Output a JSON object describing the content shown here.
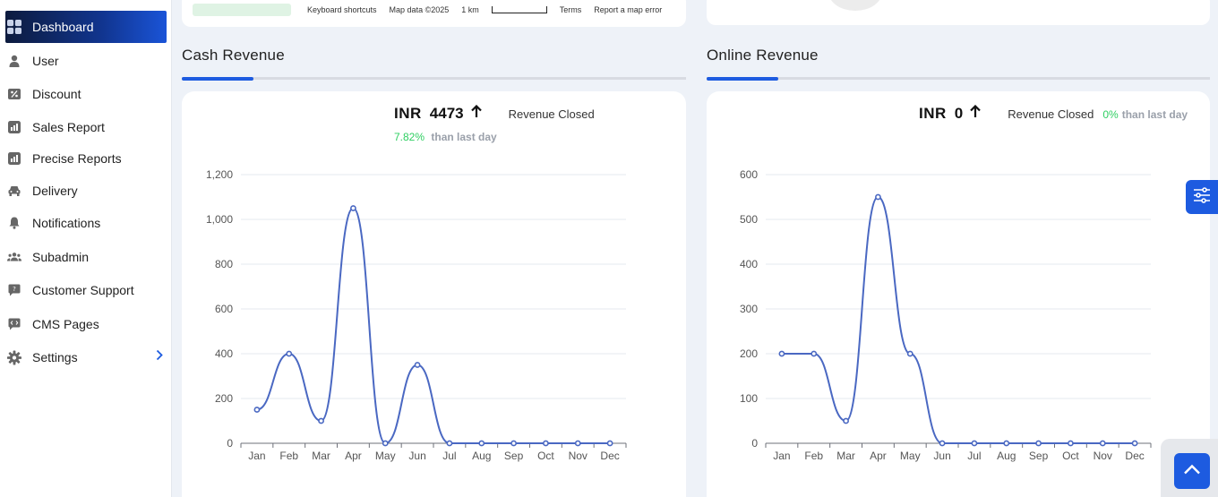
{
  "sidebar": {
    "items": [
      {
        "label": "Dashboard",
        "icon": "grid-icon",
        "active": true
      },
      {
        "label": "User",
        "icon": "user-icon"
      },
      {
        "label": "Discount",
        "icon": "discount-icon"
      },
      {
        "label": "Sales Report",
        "icon": "report-icon"
      },
      {
        "label": "Precise Reports",
        "icon": "report-icon"
      },
      {
        "label": "Delivery",
        "icon": "car-icon"
      },
      {
        "label": "Notifications",
        "icon": "bell-icon"
      },
      {
        "label": "Subadmin",
        "icon": "users-icon"
      },
      {
        "label": "Customer Support",
        "icon": "chat-icon"
      },
      {
        "label": "CMS Pages",
        "icon": "code-chat-icon"
      },
      {
        "label": "Settings",
        "icon": "gear-icon",
        "has_submenu": true
      }
    ]
  },
  "map_footer": {
    "shortcuts": "Keyboard shortcuts",
    "map_data": "Map data ©2025",
    "scale": "1 km",
    "terms": "Terms",
    "report": "Report a map error"
  },
  "cash": {
    "section_title": "Cash Revenue",
    "currency": "INR",
    "value": "4473",
    "label": "Revenue Closed",
    "change_pct": "7.82%",
    "change_text": "than last day"
  },
  "online": {
    "section_title": "Online Revenue",
    "currency": "INR",
    "value": "0",
    "label": "Revenue Closed",
    "change_pct": "0%",
    "change_text": "than last day"
  },
  "colors": {
    "accent": "#1d5be0",
    "line": "#4a68c2",
    "positive": "#2fcf62"
  },
  "chart_data": [
    {
      "type": "line",
      "categories": [
        "Jan",
        "Feb",
        "Mar",
        "Apr",
        "May",
        "Jun",
        "Jul",
        "Aug",
        "Sep",
        "Oct",
        "Nov",
        "Dec"
      ],
      "values": [
        150,
        400,
        100,
        1050,
        0,
        350,
        0,
        0,
        0,
        0,
        0,
        0
      ],
      "ylim": [
        0,
        1200
      ],
      "yticks": [
        0,
        200,
        400,
        600,
        800,
        1000,
        1200
      ],
      "ytick_labels": [
        "0",
        "200",
        "400",
        "600",
        "800",
        "1,000",
        "1,200"
      ],
      "grid": true,
      "smooth": true
    },
    {
      "type": "line",
      "categories": [
        "Jan",
        "Feb",
        "Mar",
        "Apr",
        "May",
        "Jun",
        "Jul",
        "Aug",
        "Sep",
        "Oct",
        "Nov",
        "Dec"
      ],
      "values": [
        200,
        200,
        50,
        550,
        200,
        0,
        0,
        0,
        0,
        0,
        0,
        0
      ],
      "ylim": [
        0,
        600
      ],
      "yticks": [
        0,
        100,
        200,
        300,
        400,
        500,
        600
      ],
      "ytick_labels": [
        "0",
        "100",
        "200",
        "300",
        "400",
        "500",
        "600"
      ],
      "grid": true,
      "smooth": true
    }
  ]
}
